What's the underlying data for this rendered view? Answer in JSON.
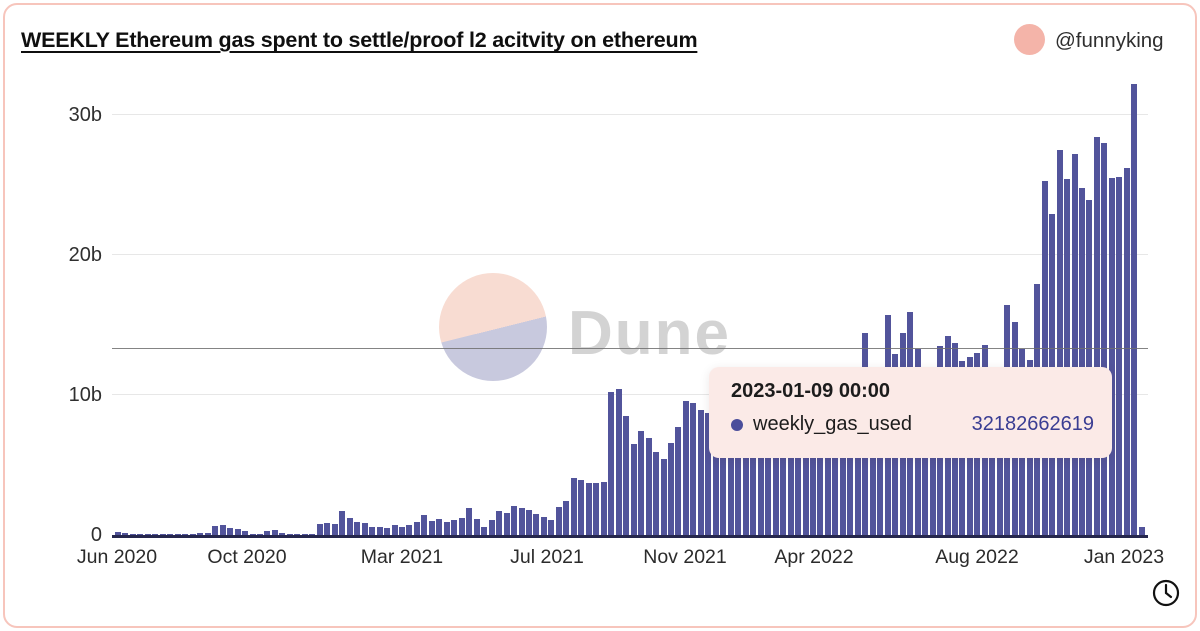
{
  "card": {
    "title": "WEEKLY Ethereum gas spent to settle/proof l2 acitvity on ethereum",
    "author": "@funnyking"
  },
  "colors": {
    "bar": "#52549B",
    "card_border": "#F7C5BC",
    "tooltip_background": "#FBEAE7",
    "tooltip_value_text": "#3A3D93",
    "tooltip_dot": "#4B4E9B",
    "avatar": "#F4B4A9",
    "watermark_peach": "#F8DCD2",
    "watermark_lavender": "#C8C9DE",
    "gridline": "#e7e7e7"
  },
  "watermark": {
    "text": "Dune"
  },
  "tooltip": {
    "date": "2023-01-09 00:00",
    "series_label": "weekly_gas_used",
    "value": "32182662619"
  },
  "chart_data": {
    "type": "bar",
    "title": "WEEKLY Ethereum gas spent to settle/proof l2 acitvity on ethereum",
    "series_name": "weekly_gas_used",
    "unit": "gas (billions)",
    "x_start_date": "2020-06-01",
    "x_frequency": "weekly",
    "hovered_index": 136,
    "hovered_date": "2023-01-09 00:00",
    "hovered_value_raw": "32182662619",
    "ylim_billions": [
      0,
      32.7
    ],
    "grid": "horizontal",
    "legend_position": "none",
    "crosshair_value_billions": 13.3,
    "y_ticks": [
      {
        "label": "0",
        "value": 0
      },
      {
        "label": "10b",
        "value": 10
      },
      {
        "label": "20b",
        "value": 20
      },
      {
        "label": "30b",
        "value": 30
      }
    ],
    "x_ticks": [
      {
        "label": "Jun 2020",
        "pct": 0.48
      },
      {
        "label": "Oct 2020",
        "pct": 13.03
      },
      {
        "label": "Mar 2021",
        "pct": 27.99
      },
      {
        "label": "Jul 2021",
        "pct": 41.99
      },
      {
        "label": "Nov 2021",
        "pct": 55.31
      },
      {
        "label": "Apr 2022",
        "pct": 67.76
      },
      {
        "label": "Aug 2022",
        "pct": 83.49
      },
      {
        "label": "Jan 2023",
        "pct": 97.68
      }
    ],
    "values_billions": [
      0.22,
      0.12,
      0.08,
      0.07,
      0.06,
      0.06,
      0.07,
      0.08,
      0.08,
      0.1,
      0.1,
      0.12,
      0.14,
      0.62,
      0.7,
      0.52,
      0.45,
      0.3,
      0.08,
      0.06,
      0.3,
      0.36,
      0.15,
      0.07,
      0.05,
      0.05,
      0.06,
      0.78,
      0.85,
      0.8,
      1.72,
      1.25,
      0.95,
      0.85,
      0.6,
      0.55,
      0.5,
      0.7,
      0.6,
      0.68,
      0.9,
      1.45,
      1.0,
      1.15,
      0.9,
      1.1,
      1.25,
      1.9,
      1.15,
      0.55,
      1.05,
      1.7,
      1.6,
      2.1,
      1.9,
      1.8,
      1.5,
      1.3,
      1.1,
      2.0,
      2.4,
      4.1,
      3.9,
      3.7,
      3.7,
      3.8,
      10.2,
      10.45,
      8.5,
      6.5,
      7.4,
      6.9,
      5.9,
      5.4,
      6.6,
      7.7,
      9.6,
      9.4,
      8.9,
      8.7,
      8.3,
      8.0,
      8.4,
      8.8,
      9.2,
      8.6,
      9.0,
      9.5,
      10.2,
      9.8,
      10.6,
      11.2,
      10.8,
      11.5,
      11.0,
      11.4,
      11.5,
      10.8,
      11.2,
      11.8,
      14.4,
      11.5,
      12.0,
      15.7,
      12.9,
      14.4,
      15.9,
      13.3,
      12.0,
      11.8,
      13.5,
      14.2,
      13.7,
      12.4,
      12.7,
      13.0,
      13.6,
      12.0,
      11.5,
      16.4,
      15.2,
      13.3,
      12.5,
      17.9,
      25.3,
      22.9,
      27.5,
      25.4,
      27.2,
      24.8,
      23.9,
      28.4,
      28.0,
      25.5,
      25.6,
      26.2,
      32.18,
      0.55
    ]
  }
}
